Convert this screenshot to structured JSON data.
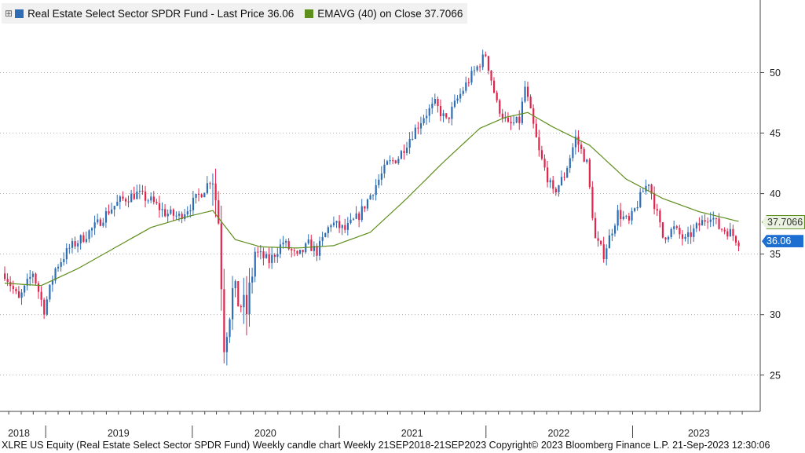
{
  "legend": {
    "glyph": "⊞",
    "price_label": "Real Estate Select Sector SPDR Fund - Last Price 36.06",
    "ema_label": "EMAVG (40)  on Close 37.7066"
  },
  "colors": {
    "up": "#2e6db4",
    "down": "#e0244c",
    "ema": "#5e8e1c",
    "tag_price": "#1c6fd1",
    "tag_ema": "#5e8e1c"
  },
  "chart_data": {
    "type": "candlestick",
    "frequency": "weekly",
    "ylim": [
      22,
      56
    ],
    "y_ticks": [
      25,
      30,
      35,
      40,
      45,
      50
    ],
    "x_year_labels": [
      "2018",
      "2019",
      "2020",
      "2021",
      "2022",
      "2023"
    ],
    "x_range": [
      "2018-09-21",
      "2023-09-21"
    ],
    "last_price": 36.06,
    "ema_last": 37.7066,
    "price_tag_label": "36.06",
    "ema_tag_label": "37.7066",
    "price_path": [
      [
        "2018-09-21",
        33.4
      ],
      [
        "2018-10-26",
        31.2
      ],
      [
        "2018-11-30",
        33.5
      ],
      [
        "2018-12-28",
        30.4
      ],
      [
        "2019-01-25",
        33.8
      ],
      [
        "2019-03-01",
        35.5
      ],
      [
        "2019-04-05",
        36.4
      ],
      [
        "2019-05-10",
        37.5
      ],
      [
        "2019-06-07",
        38.6
      ],
      [
        "2019-07-05",
        39.4
      ],
      [
        "2019-08-16",
        40.0
      ],
      [
        "2019-09-20",
        39.4
      ],
      [
        "2019-10-25",
        38.4
      ],
      [
        "2019-11-29",
        38.1
      ],
      [
        "2019-12-27",
        39.0
      ],
      [
        "2020-01-31",
        40.4
      ],
      [
        "2020-02-21",
        41.5
      ],
      [
        "2020-03-06",
        37.8
      ],
      [
        "2020-03-20",
        27.8
      ],
      [
        "2020-04-10",
        31.8
      ],
      [
        "2020-05-15",
        30.2
      ],
      [
        "2020-06-05",
        35.2
      ],
      [
        "2020-07-10",
        34.4
      ],
      [
        "2020-08-14",
        36.0
      ],
      [
        "2020-09-18",
        34.7
      ],
      [
        "2020-10-16",
        35.8
      ],
      [
        "2020-11-06",
        35.2
      ],
      [
        "2020-12-11",
        37.6
      ],
      [
        "2021-01-15",
        37.0
      ],
      [
        "2021-02-19",
        38.2
      ],
      [
        "2021-03-26",
        40.3
      ],
      [
        "2021-04-30",
        42.4
      ],
      [
        "2021-05-28",
        43.0
      ],
      [
        "2021-06-25",
        44.6
      ],
      [
        "2021-07-30",
        46.4
      ],
      [
        "2021-08-27",
        47.4
      ],
      [
        "2021-09-24",
        46.0
      ],
      [
        "2021-10-22",
        47.8
      ],
      [
        "2021-11-19",
        49.4
      ],
      [
        "2021-12-31",
        51.5
      ],
      [
        "2022-01-28",
        47.4
      ],
      [
        "2022-02-25",
        45.6
      ],
      [
        "2022-03-25",
        46.0
      ],
      [
        "2022-04-08",
        48.8
      ],
      [
        "2022-05-13",
        43.4
      ],
      [
        "2022-06-17",
        40.0
      ],
      [
        "2022-07-15",
        41.5
      ],
      [
        "2022-08-12",
        44.6
      ],
      [
        "2022-09-09",
        42.5
      ],
      [
        "2022-09-30",
        36.2
      ],
      [
        "2022-10-21",
        35.0
      ],
      [
        "2022-11-25",
        38.4
      ],
      [
        "2022-12-23",
        37.6
      ],
      [
        "2023-01-27",
        40.2
      ],
      [
        "2023-02-10",
        41.0
      ],
      [
        "2023-03-17",
        36.4
      ],
      [
        "2023-04-14",
        37.1
      ],
      [
        "2023-05-12",
        36.1
      ],
      [
        "2023-06-09",
        37.2
      ],
      [
        "2023-07-14",
        38.3
      ],
      [
        "2023-08-04",
        37.2
      ],
      [
        "2023-09-01",
        36.8
      ],
      [
        "2023-09-21",
        36.06
      ]
    ],
    "ema_path": [
      [
        "2018-09-21",
        32.6
      ],
      [
        "2018-12-21",
        32.4
      ],
      [
        "2019-03-22",
        33.8
      ],
      [
        "2019-06-21",
        35.5
      ],
      [
        "2019-09-20",
        37.2
      ],
      [
        "2019-12-20",
        38.1
      ],
      [
        "2020-02-21",
        38.6
      ],
      [
        "2020-04-17",
        36.2
      ],
      [
        "2020-06-19",
        35.6
      ],
      [
        "2020-09-18",
        35.5
      ],
      [
        "2020-12-18",
        35.7
      ],
      [
        "2021-03-19",
        36.8
      ],
      [
        "2021-06-18",
        39.6
      ],
      [
        "2021-09-17",
        42.6
      ],
      [
        "2021-12-17",
        45.4
      ],
      [
        "2022-02-18",
        46.3
      ],
      [
        "2022-04-15",
        46.7
      ],
      [
        "2022-06-17",
        45.5
      ],
      [
        "2022-09-16",
        44.0
      ],
      [
        "2022-12-16",
        41.2
      ],
      [
        "2023-03-17",
        39.6
      ],
      [
        "2023-06-16",
        38.5
      ],
      [
        "2023-09-21",
        37.7066
      ]
    ]
  },
  "footer": "XLRE US Equity (Real Estate Select Sector SPDR Fund) Weekly candle chart  Weekly 21SEP2018-21SEP2023  Copyright© 2023 Bloomberg Finance L.P.  21-Sep-2023 12:30:06"
}
